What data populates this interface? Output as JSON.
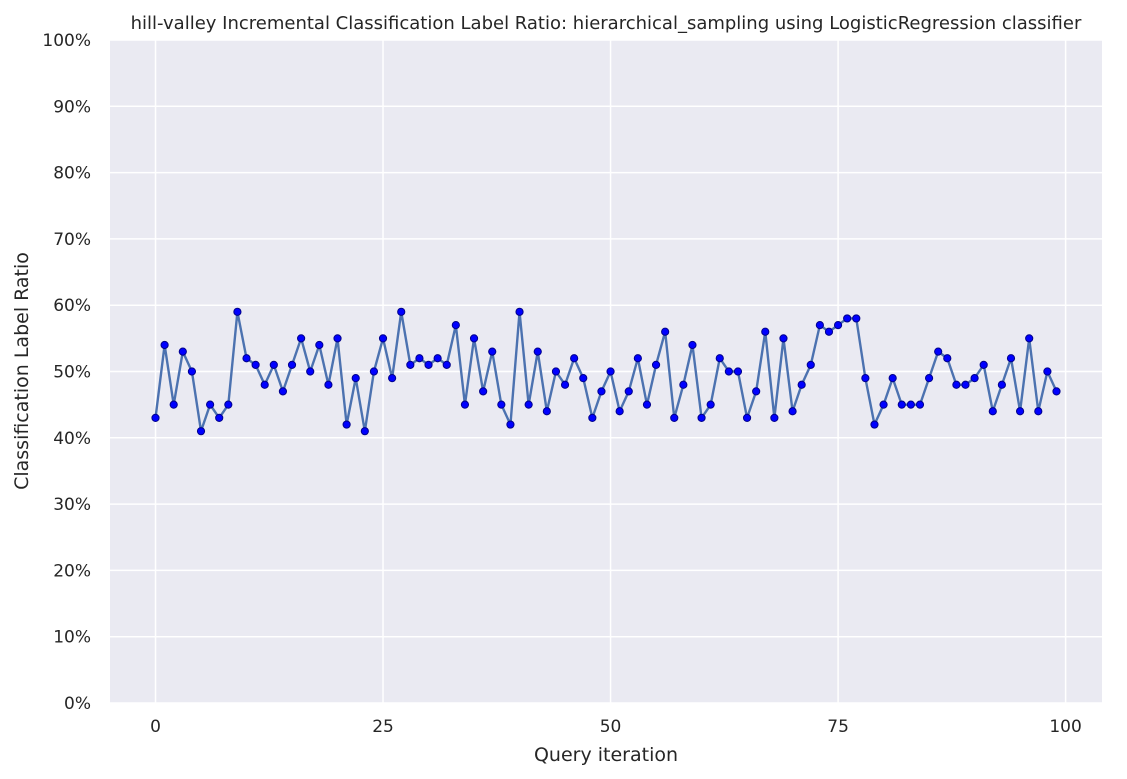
{
  "chart_data": {
    "type": "line",
    "title": "hill-valley Incremental Classification Label Ratio: hierarchical_sampling using LogisticRegression classifier",
    "xlabel": "Query iteration",
    "ylabel": "Classification Label Ratio",
    "xlim": [
      -5,
      104
    ],
    "ylim": [
      0,
      100
    ],
    "xticks": [
      0,
      25,
      50,
      75,
      100
    ],
    "xtick_labels": [
      "0",
      "25",
      "50",
      "75",
      "100"
    ],
    "yticks": [
      0,
      10,
      20,
      30,
      40,
      50,
      60,
      70,
      80,
      90,
      100
    ],
    "ytick_labels": [
      "0%",
      "10%",
      "20%",
      "30%",
      "40%",
      "50%",
      "60%",
      "70%",
      "80%",
      "90%",
      "100%"
    ],
    "grid": true,
    "legend": false,
    "colors": {
      "background": "#eaeaf2",
      "grid": "#ffffff",
      "line": "#4c72b0",
      "marker_fill": "#0000ff",
      "marker_edge": "#00008b"
    },
    "series": [
      {
        "x": [
          0,
          1,
          2,
          3,
          4,
          5,
          6,
          7,
          8,
          9,
          10,
          11,
          12,
          13,
          14,
          15,
          16,
          17,
          18,
          19,
          20,
          21,
          22,
          23,
          24,
          25,
          26,
          27,
          28,
          29,
          30,
          31,
          32,
          33,
          34,
          35,
          36,
          37,
          38,
          39,
          40,
          41,
          42,
          43,
          44,
          45,
          46,
          47,
          48,
          49,
          50,
          51,
          52,
          53,
          54,
          55,
          56,
          57,
          58,
          59,
          60,
          61,
          62,
          63,
          64,
          65,
          66,
          67,
          68,
          69,
          70,
          71,
          72,
          73,
          74,
          75,
          76,
          77,
          78,
          79,
          80,
          81,
          82,
          83,
          84,
          85,
          86,
          87,
          88,
          89,
          90,
          91,
          92,
          93,
          94,
          95,
          96,
          97,
          98,
          99
        ],
        "values": [
          43,
          54,
          45,
          53,
          50,
          41,
          45,
          43,
          45,
          59,
          52,
          51,
          48,
          51,
          47,
          51,
          55,
          50,
          54,
          48,
          55,
          42,
          49,
          41,
          50,
          55,
          49,
          59,
          51,
          52,
          51,
          52,
          51,
          57,
          45,
          55,
          47,
          53,
          45,
          42,
          59,
          45,
          53,
          44,
          50,
          48,
          52,
          49,
          43,
          47,
          50,
          44,
          47,
          52,
          45,
          51,
          56,
          43,
          48,
          54,
          43,
          45,
          52,
          50,
          50,
          43,
          47,
          56,
          43,
          55,
          44,
          48,
          51,
          57,
          56,
          57,
          58,
          58,
          49,
          42,
          45,
          49,
          45,
          45,
          45,
          49,
          53,
          52,
          48,
          48,
          49,
          51,
          44,
          48,
          52,
          44,
          55,
          44,
          50,
          47
        ]
      }
    ]
  }
}
